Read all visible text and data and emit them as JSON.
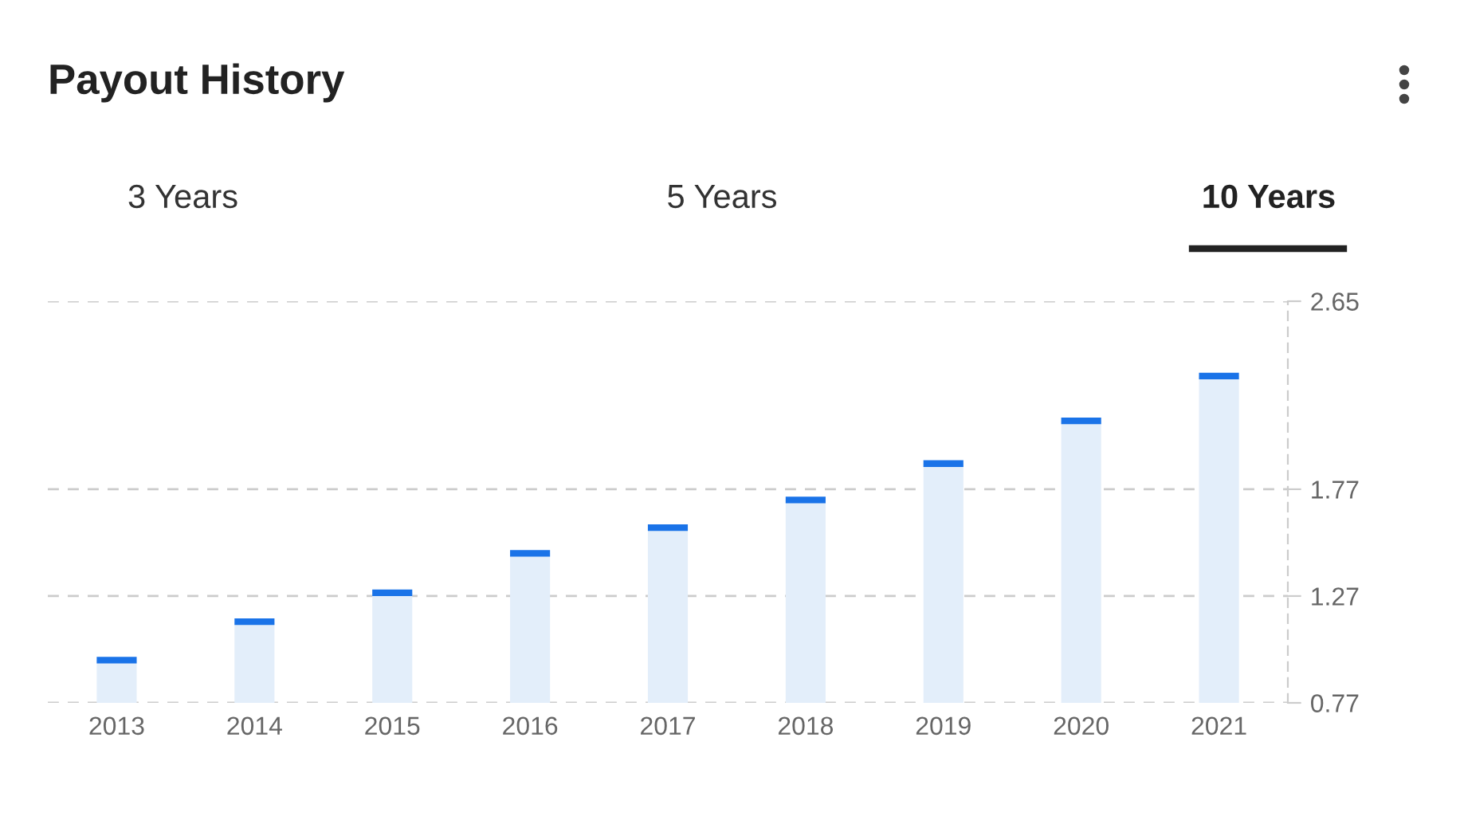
{
  "chart_data": {
    "type": "bar",
    "title": "Payout History",
    "annotations": [
      "3 Years",
      "5 Years",
      "10 Years"
    ],
    "categories": [
      "2013",
      "2014",
      "2015",
      "2016",
      "2017",
      "2018",
      "2019",
      "2020",
      "2021"
    ],
    "values": [
      0.97,
      1.15,
      1.285,
      1.47,
      1.59,
      1.72,
      1.89,
      2.09,
      2.3
    ],
    "color": "#e3eefa",
    "ylim": [
      0.77,
      2.65
    ],
    "yticks": [
      0.77,
      1.27,
      1.77,
      2.65
    ],
    "grid": "y"
  }
}
